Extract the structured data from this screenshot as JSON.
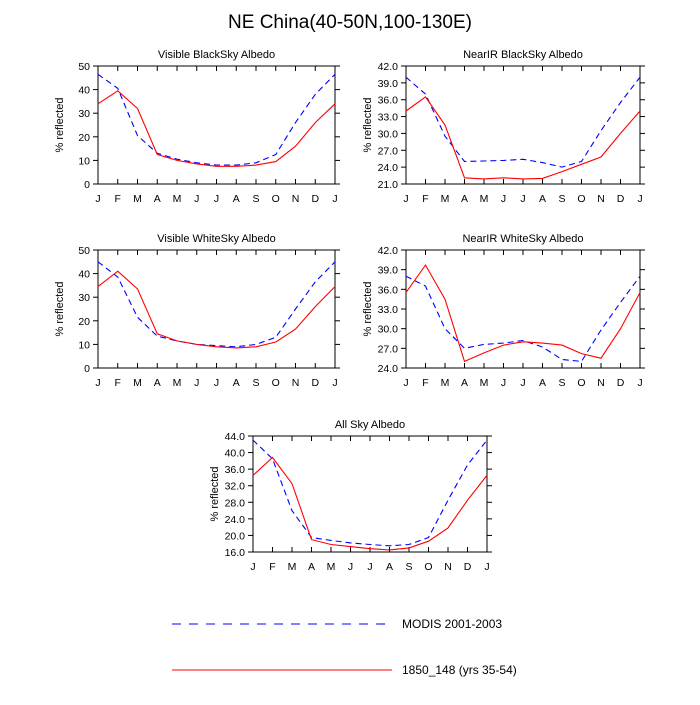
{
  "title": "NE China(40-50N,100-130E)",
  "ylabel": "% reflected",
  "months": [
    "J",
    "F",
    "M",
    "A",
    "M",
    "J",
    "J",
    "A",
    "S",
    "O",
    "N",
    "D",
    "J"
  ],
  "colors": {
    "modis": "#0000ff",
    "model": "#ff0000"
  },
  "legend": [
    {
      "key": "modis",
      "label": "MODIS 2001-2003",
      "style": "dashed"
    },
    {
      "key": "model",
      "label": "1850_148 (yrs 35-54)",
      "style": "solid"
    }
  ],
  "chart_data": [
    {
      "type": "line",
      "title": "Visible BlackSky Albedo",
      "ylabel": "% reflected",
      "ylim": [
        0,
        50
      ],
      "yticks": [
        "0",
        "10",
        "20",
        "30",
        "40",
        "50"
      ],
      "series": [
        {
          "name": "MODIS 2001-2003",
          "key": "modis",
          "values": [
            46.5,
            40.5,
            20.5,
            13.0,
            10.5,
            9.0,
            8.0,
            8.0,
            9.0,
            12.5,
            26.0,
            38.0,
            46.5
          ]
        },
        {
          "name": "1850_148 (yrs 35-54)",
          "key": "model",
          "values": [
            34.0,
            39.5,
            32.0,
            12.5,
            10.0,
            8.5,
            7.5,
            7.5,
            8.0,
            9.5,
            16.0,
            26.0,
            34.0
          ]
        }
      ]
    },
    {
      "type": "line",
      "title": "NearIR BlackSky Albedo",
      "ylabel": "% reflected",
      "ylim": [
        21.0,
        42.0
      ],
      "yticks": [
        "21.0",
        "24.0",
        "27.0",
        "30.0",
        "33.0",
        "36.0",
        "39.0",
        "42.0"
      ],
      "series": [
        {
          "name": "MODIS 2001-2003",
          "key": "modis",
          "values": [
            40.0,
            37.0,
            29.5,
            25.0,
            25.1,
            25.2,
            25.4,
            24.8,
            24.0,
            25.0,
            30.5,
            35.5,
            40.0
          ]
        },
        {
          "name": "1850_148 (yrs 35-54)",
          "key": "model",
          "values": [
            34.0,
            36.5,
            31.5,
            22.1,
            21.9,
            22.1,
            21.9,
            22.0,
            23.2,
            24.5,
            25.8,
            30.0,
            34.0
          ]
        }
      ]
    },
    {
      "type": "line",
      "title": "Visible WhiteSky Albedo",
      "ylabel": "% reflected",
      "ylim": [
        0,
        50
      ],
      "yticks": [
        "0",
        "10",
        "20",
        "30",
        "40",
        "50"
      ],
      "series": [
        {
          "name": "MODIS 2001-2003",
          "key": "modis",
          "values": [
            45.0,
            38.5,
            21.5,
            13.5,
            11.5,
            10.0,
            9.5,
            9.0,
            10.0,
            13.0,
            25.0,
            36.5,
            45.0
          ]
        },
        {
          "name": "1850_148 (yrs 35-54)",
          "key": "model",
          "values": [
            34.5,
            41.0,
            33.5,
            14.5,
            11.5,
            10.0,
            9.0,
            8.5,
            9.0,
            11.0,
            16.5,
            26.0,
            34.5
          ]
        }
      ]
    },
    {
      "type": "line",
      "title": "NearIR WhiteSky Albedo",
      "ylabel": "% reflected",
      "ylim": [
        24.0,
        42.0
      ],
      "yticks": [
        "24.0",
        "27.0",
        "30.0",
        "33.0",
        "36.0",
        "39.0",
        "42.0"
      ],
      "series": [
        {
          "name": "MODIS 2001-2003",
          "key": "modis",
          "values": [
            38.0,
            36.5,
            30.0,
            27.0,
            27.6,
            27.8,
            28.2,
            27.2,
            25.3,
            25.0,
            29.8,
            34.0,
            38.0
          ]
        },
        {
          "name": "1850_148 (yrs 35-54)",
          "key": "model",
          "values": [
            35.5,
            39.7,
            34.5,
            25.0,
            26.3,
            27.5,
            28.0,
            27.8,
            27.5,
            26.2,
            25.5,
            30.0,
            35.5
          ]
        }
      ]
    },
    {
      "type": "line",
      "title": "All Sky Albedo",
      "ylabel": "% reflected",
      "ylim": [
        16.0,
        44.0
      ],
      "yticks": [
        "16.0",
        "20.0",
        "24.0",
        "28.0",
        "32.0",
        "36.0",
        "40.0",
        "44.0"
      ],
      "series": [
        {
          "name": "MODIS 2001-2003",
          "key": "modis",
          "values": [
            43.0,
            38.5,
            26.0,
            19.5,
            18.8,
            18.2,
            17.8,
            17.5,
            17.8,
            19.5,
            28.5,
            37.0,
            43.0
          ]
        },
        {
          "name": "1850_148 (yrs 35-54)",
          "key": "model",
          "values": [
            34.5,
            38.8,
            32.5,
            19.0,
            17.8,
            17.3,
            16.8,
            16.5,
            17.0,
            18.6,
            21.8,
            28.5,
            34.5
          ]
        }
      ]
    }
  ]
}
